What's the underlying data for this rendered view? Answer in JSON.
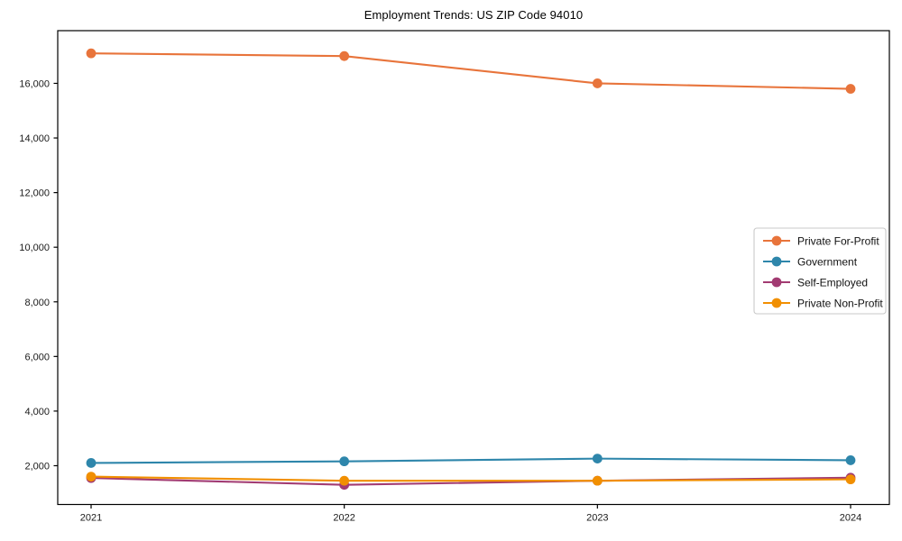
{
  "chart_data": {
    "type": "line",
    "title": "Employment Trends: US ZIP Code 94010",
    "x": [
      2021,
      2022,
      2023,
      2024
    ],
    "xtick_labels": [
      "2021",
      "2022",
      "2023",
      "2024"
    ],
    "series": [
      {
        "name": "Private For-Profit",
        "color": "#E8743B",
        "values": [
          17100,
          17000,
          16000,
          15800
        ]
      },
      {
        "name": "Government",
        "color": "#2E86AB",
        "values": [
          2100,
          2160,
          2260,
          2200
        ]
      },
      {
        "name": "Self-Employed",
        "color": "#A23B72",
        "values": [
          1550,
          1300,
          1450,
          1560
        ]
      },
      {
        "name": "Private Non-Profit",
        "color": "#F18F01",
        "values": [
          1600,
          1450,
          1450,
          1500
        ]
      }
    ],
    "yticks": [
      2000,
      4000,
      6000,
      8000,
      10000,
      12000,
      14000,
      16000
    ],
    "ytick_labels": [
      "2,000",
      "4,000",
      "6,000",
      "8,000",
      "10,000",
      "12,000",
      "14,000",
      "16,000"
    ],
    "ylim": [
      580,
      17930
    ],
    "grid": false,
    "marker": "o",
    "legend_position": "center-right",
    "axis_color": "#000000",
    "legend_border_color": "#c9c9c9",
    "tick_label_color": "#1a1a1a"
  }
}
